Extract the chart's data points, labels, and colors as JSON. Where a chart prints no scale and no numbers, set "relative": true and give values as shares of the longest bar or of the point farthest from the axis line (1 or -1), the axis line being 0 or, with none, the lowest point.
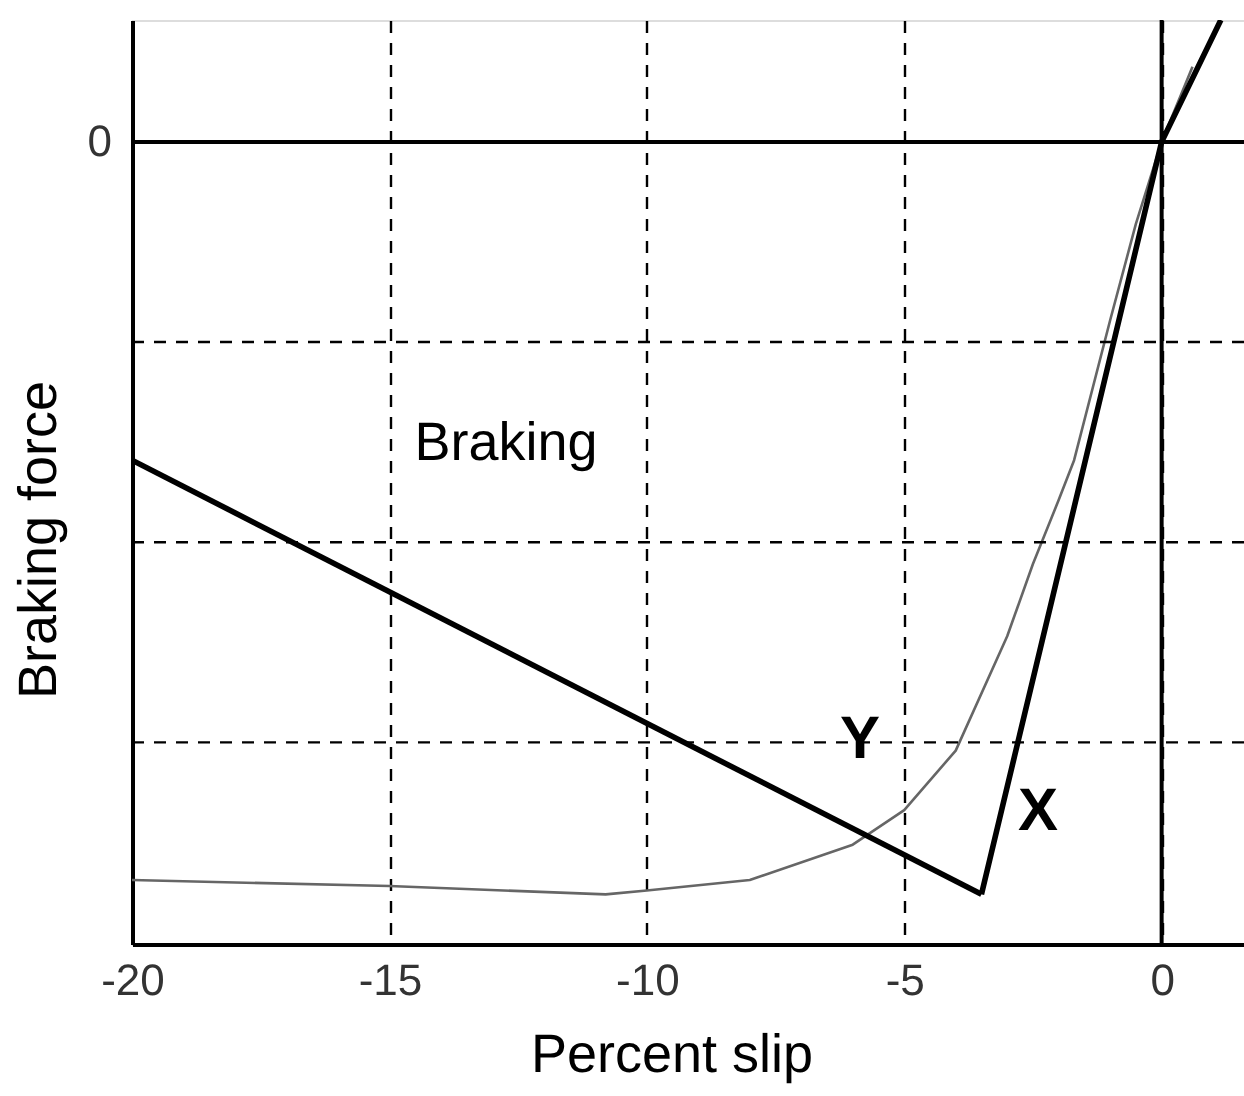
{
  "chart_data": {
    "type": "line",
    "relative": true,
    "xlabel": "Percent slip",
    "ylabel": "Braking force",
    "xlim": [
      -20,
      1.6
    ],
    "xticks": [
      -20,
      -15,
      -10,
      -5,
      0
    ],
    "grid": "x",
    "line_style": "solid",
    "marker": "none",
    "series": [
      {
        "color": "#666666",
        "x": [
          -20,
          -15,
          -10.8,
          -10,
          -8,
          -6,
          -5,
          -4,
          -3,
          -2.5,
          -2,
          -1.7,
          -1,
          -0.5,
          0,
          0.6
        ],
        "values": [
          -0.981,
          -0.989,
          -1.0,
          -0.995,
          -0.981,
          -0.934,
          -0.888,
          -0.809,
          -0.657,
          -0.561,
          -0.476,
          -0.423,
          -0.237,
          -0.109,
          0,
          0.1
        ]
      },
      {
        "color": "#000000",
        "x": [
          -20,
          -3.5
        ],
        "values": [
          -0.423,
          -1
        ]
      },
      {
        "color": "#000000",
        "x": [
          -3.5,
          0,
          1.15
        ],
        "values": [
          -1,
          0,
          0.162
        ]
      }
    ],
    "ref_lines": [
      {
        "axis": "y",
        "value": 0,
        "label": "0",
        "line_style": "solid"
      },
      {
        "axis": "x",
        "value": 0,
        "line_style": "solid"
      },
      {
        "axis": "y",
        "value": -0.266,
        "line_style": "dashed"
      },
      {
        "axis": "y",
        "value": -0.532,
        "line_style": "dashed"
      },
      {
        "axis": "y",
        "value": -0.798,
        "line_style": "dashed"
      }
    ],
    "annotations": [
      "Braking",
      "Y",
      "X"
    ]
  }
}
